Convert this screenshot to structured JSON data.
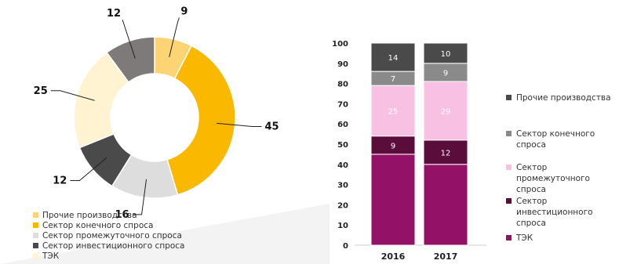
{
  "chart_data": [
    {
      "type": "pie",
      "subtype": "donut",
      "labels": [
        "Прочие производства",
        "Сектор конечного спроса",
        "Сектор промежуточного спроса",
        "Сектор инвестиционного спроса",
        "ТЭК"
      ],
      "values": [
        9,
        45,
        16,
        12,
        25
      ],
      "value_labels": [
        "9",
        "45",
        "16",
        "12",
        "25"
      ],
      "extra_segment": {
        "value": 12,
        "label": "12",
        "color": "#7f7a7a"
      },
      "colors": [
        "#fcd473",
        "#fbb800",
        "#dddddd",
        "#4a4a4a",
        "#fff3d2"
      ],
      "legend": "bottom-left"
    },
    {
      "type": "bar",
      "stacked": true,
      "categories": [
        "2016",
        "2017"
      ],
      "series": [
        {
          "name": "ТЭК",
          "values": [
            45,
            40
          ],
          "color": "#931167",
          "labels": [
            "",
            ""
          ]
        },
        {
          "name": "Сектор инвестиционного спроса",
          "values": [
            9,
            12
          ],
          "color": "#5a0c3b",
          "labels": [
            "9",
            "12"
          ]
        },
        {
          "name": "Сектор промежуточного спроса",
          "values": [
            25,
            29
          ],
          "color": "#f8c0e2",
          "labels": [
            "25",
            "29"
          ]
        },
        {
          "name": "Сектор конечного спроса",
          "values": [
            7,
            9
          ],
          "color": "#8a8a8a",
          "labels": [
            "7",
            "9"
          ]
        },
        {
          "name": "Прочие производства",
          "values": [
            14,
            10
          ],
          "color": "#4a4a4a",
          "labels": [
            "14",
            "10"
          ]
        }
      ],
      "ylim": [
        0,
        100
      ],
      "yticks": [
        0,
        10,
        20,
        30,
        40,
        50,
        60,
        70,
        80,
        90,
        100
      ],
      "legend_order": [
        "Прочие производства",
        "Сектор конечного спроса",
        "Сектор промежуточного спроса",
        "Сектор инвестиционного спроса",
        "ТЭК"
      ],
      "legend_lines": [
        [
          "Прочие производства"
        ],
        [
          "Сектор конечного",
          "спроса"
        ],
        [
          "Сектор",
          "промежуточного",
          "спроса"
        ],
        [
          "Сектор",
          "инвестиционного",
          "спроса"
        ],
        [
          "ТЭК"
        ]
      ],
      "legend": "right"
    }
  ]
}
